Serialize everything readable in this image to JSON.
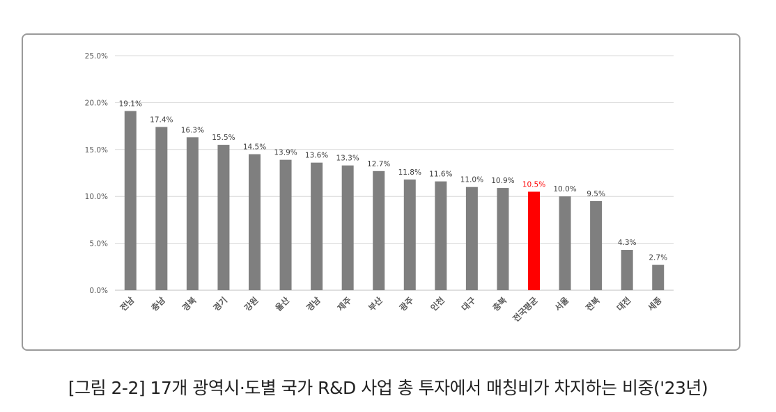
{
  "chart_data": {
    "type": "bar",
    "title": "",
    "xlabel": "",
    "ylabel": "",
    "ylim": [
      0,
      25
    ],
    "yticks": [
      0,
      5,
      10,
      15,
      20,
      25
    ],
    "ytick_labels": [
      "0.0%",
      "5.0%",
      "10.0%",
      "15.0%",
      "20.0%",
      "25.0%"
    ],
    "grid": true,
    "categories": [
      "전남",
      "충남",
      "경북",
      "경기",
      "강원",
      "울산",
      "경남",
      "제주",
      "부산",
      "광주",
      "인천",
      "대구",
      "충북",
      "전국평균",
      "서울",
      "전북",
      "대전",
      "세종"
    ],
    "values": [
      19.1,
      17.4,
      16.3,
      15.5,
      14.5,
      13.9,
      13.6,
      13.3,
      12.7,
      11.8,
      11.6,
      11.0,
      10.9,
      10.5,
      10.0,
      9.5,
      4.3,
      2.7
    ],
    "data_labels": [
      "19.1%",
      "17.4%",
      "16.3%",
      "15.5%",
      "14.5%",
      "13.9%",
      "13.6%",
      "13.3%",
      "12.7%",
      "11.8%",
      "11.6%",
      "11.0%",
      "10.9%",
      "10.5%",
      "10.0%",
      "9.5%",
      "4.3%",
      "2.7%"
    ],
    "highlight_category": "전국평균",
    "colors": {
      "bar": "#7f7f7f",
      "highlight": "#ff0000",
      "grid": "#d9d9d9"
    }
  },
  "caption": "[그림 2-2] 17개 광역시·도별 국가 R&D 사업 총 투자에서 매칭비가 차지하는 비중('23년)"
}
